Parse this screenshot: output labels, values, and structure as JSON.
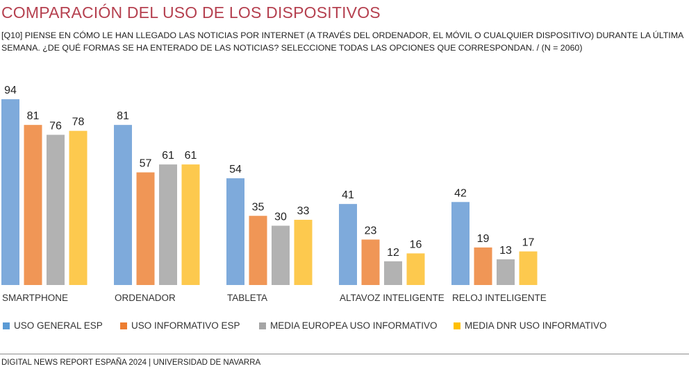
{
  "header": {
    "title": "COMPARACIÓN DEL USO DE LOS DISPOSITIVOS",
    "subtitle": "[Q10] PIENSE EN CÓMO LE HAN LLEGADO LAS NOTICIAS POR INTERNET (A TRAVÉS DEL ORDENADOR, EL MÓVIL O CUALQUIER DISPOSITIVO) DURANTE LA ÚLTIMA SEMANA. ¿DE QUÉ FORMAS SE HA ENTERADO DE LAS NOTICIAS? SELECCIONE TODAS LAS OPCIONES QUE CORRESPONDAN. / (N = 2060)"
  },
  "chart_data": {
    "type": "bar",
    "title": "COMPARACIÓN DEL USO DE LOS DISPOSITIVOS",
    "xlabel": "",
    "ylabel": "",
    "ylim": [
      0,
      100
    ],
    "grid": false,
    "legend_position": "bottom",
    "categories": [
      "SMARTPHONE",
      "ORDENADOR",
      "TABLETA",
      "ALTAVOZ INTELIGENTE",
      "RELOJ INTELIGENTE"
    ],
    "series": [
      {
        "name": "USO GENERAL ESP",
        "color": "#7eaadb",
        "values": [
          94,
          81,
          54,
          41,
          42
        ]
      },
      {
        "name": "USO INFORMATIVO ESP",
        "color": "#f09656",
        "values": [
          81,
          57,
          35,
          23,
          19
        ]
      },
      {
        "name": "MEDIA EUROPEA USO INFORMATIVO",
        "color": "#b2b2b2",
        "values": [
          76,
          61,
          30,
          12,
          13
        ]
      },
      {
        "name": "MEDIA DNR USO INFORMATIVO",
        "color": "#fdc94e",
        "values": [
          78,
          61,
          33,
          16,
          17
        ]
      }
    ]
  },
  "legend": {
    "items": [
      {
        "label": "USO GENERAL ESP",
        "color": "#5b9bd5"
      },
      {
        "label": "USO INFORMATIVO ESP",
        "color": "#ed7d31"
      },
      {
        "label": "MEDIA EUROPEA USO INFORMATIVO",
        "color": "#a5a5a5"
      },
      {
        "label": "MEDIA DNR USO INFORMATIVO",
        "color": "#ffc000"
      }
    ]
  },
  "footer": {
    "text": "DIGITAL NEWS REPORT ESPAÑA 2024 | UNIVERSIDAD DE NAVARRA"
  }
}
